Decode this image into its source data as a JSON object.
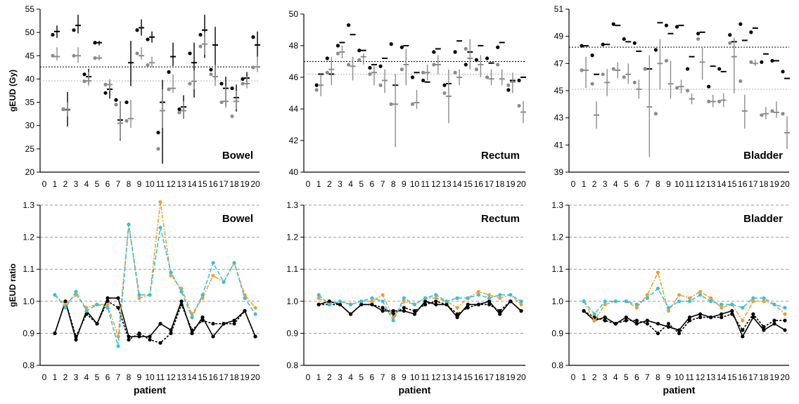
{
  "colors": {
    "black": "#000000",
    "gray": "#8c8c8c",
    "gray_light": "#b4b4b4",
    "orange": "#f0a030",
    "cyan": "#35c2dc",
    "gridline": "#999999"
  },
  "chart_data": [
    {
      "type": "scatter",
      "title": "Bowel",
      "xlabel": "",
      "ylabel": "gEUD (Gy)",
      "xlim": [
        0,
        20
      ],
      "ylim": [
        20,
        55
      ],
      "xticks": [
        0,
        1,
        2,
        3,
        4,
        5,
        6,
        7,
        8,
        9,
        10,
        11,
        12,
        13,
        14,
        15,
        16,
        17,
        18,
        19,
        20
      ],
      "yticks": [
        20,
        25,
        30,
        35,
        40,
        45,
        50,
        55
      ],
      "reference_lines": [
        42.6,
        39.6
      ],
      "x": [
        1,
        2,
        3,
        4,
        5,
        6,
        7,
        8,
        9,
        10,
        11,
        12,
        13,
        14,
        15,
        16,
        17,
        18,
        19,
        20
      ],
      "series": [
        {
          "marker": "black-dots",
          "values": [
            49.5,
            33.5,
            50.5,
            41,
            47.8,
            37,
            35.5,
            35,
            50.5,
            48.5,
            28.5,
            41.5,
            33.5,
            45.5,
            49.5,
            42,
            39,
            38,
            40,
            49
          ]
        },
        {
          "marker": "black-bars",
          "mean": [
            50.2,
            33.4,
            51.5,
            40.5,
            47.8,
            37.8,
            31.2,
            43.5,
            51,
            49,
            35,
            44.8,
            34,
            43.5,
            50.5,
            47.3,
            38,
            36,
            40.2,
            47.3
          ],
          "error_low": [
            48.8,
            29.8,
            49.8,
            39,
            47.2,
            35.8,
            26.8,
            38.5,
            49.3,
            47.8,
            21.8,
            42.8,
            31.5,
            36,
            44.5,
            39.8,
            34.2,
            33,
            38.8,
            44.8
          ],
          "error_high": [
            51.5,
            37.2,
            53.8,
            42.2,
            48.2,
            39.5,
            35.2,
            48.2,
            52.8,
            50.2,
            39.8,
            47.8,
            36.5,
            47.8,
            53.8,
            51.2,
            40.5,
            38.8,
            41.5,
            50.2
          ]
        },
        {
          "marker": "gray-dots",
          "values": [
            45,
            33.5,
            45,
            39.5,
            44.5,
            38.8,
            34.5,
            31,
            45.5,
            43,
            25,
            37.8,
            32.8,
            39,
            47,
            41,
            35,
            32,
            39,
            42.5
          ]
        },
        {
          "marker": "gray-bars",
          "mean": [
            44.8,
            33.5,
            45,
            39.6,
            44.5,
            38.8,
            30.5,
            31.5,
            45,
            43.5,
            33.2,
            38,
            33.2,
            39.5,
            47.5,
            40.5,
            35.2,
            35.2,
            39,
            42.6
          ],
          "error_low": [
            44,
            32,
            43.5,
            38.5,
            44,
            37.5,
            27,
            29.5,
            44.2,
            42.5,
            29.5,
            37,
            31.5,
            37.8,
            45.2,
            38.5,
            33.8,
            33.5,
            38,
            41.5
          ],
          "error_high": [
            46.8,
            35,
            46.8,
            41.5,
            45.2,
            40,
            35,
            35.5,
            46.8,
            44.8,
            37.8,
            41,
            35.2,
            41.8,
            50,
            43,
            38.5,
            37.5,
            40.5,
            44.8
          ]
        }
      ],
      "annotations": [
        "Bowel"
      ]
    },
    {
      "type": "scatter",
      "title": "Rectum",
      "xlabel": "",
      "ylabel": "",
      "xlim": [
        0,
        20
      ],
      "ylim": [
        40,
        50
      ],
      "xticks": [
        0,
        1,
        2,
        3,
        4,
        5,
        6,
        7,
        8,
        9,
        10,
        11,
        12,
        13,
        14,
        15,
        16,
        17,
        18,
        19,
        20
      ],
      "yticks": [
        40,
        42,
        44,
        46,
        48,
        50
      ],
      "reference_lines": [
        47,
        46.2
      ],
      "x": [
        1,
        2,
        3,
        4,
        5,
        6,
        7,
        8,
        9,
        10,
        11,
        12,
        13,
        14,
        15,
        16,
        17,
        18,
        19,
        20
      ],
      "series": [
        {
          "marker": "black-dots",
          "values": [
            45.5,
            47.2,
            48,
            49.3,
            47.7,
            46.6,
            46.7,
            48.1,
            47.9,
            46,
            45.8,
            47.6,
            45.5,
            47.6,
            46.8,
            47.1,
            47.2,
            47.9,
            45.2,
            45.8
          ]
        },
        {
          "marker": "black-bars",
          "mean": [
            46.2,
            46.2,
            48.2,
            48.7,
            47.7,
            46.8,
            47.2,
            45.5,
            48,
            46.3,
            45.7,
            47.8,
            45.6,
            48.3,
            47.6,
            48,
            46.9,
            48.2,
            45.8,
            46
          ]
        },
        {
          "marker": "gray-dots",
          "values": [
            45.2,
            46.3,
            47.5,
            46.8,
            47.1,
            46.2,
            45.5,
            44.3,
            46.5,
            44.3,
            46.3,
            46.8,
            45,
            46.3,
            47.8,
            46.5,
            46,
            46.8,
            45.5,
            44.2
          ]
        },
        {
          "marker": "gray-bars",
          "mean": [
            45.5,
            46.5,
            47.6,
            46.7,
            47.3,
            46.3,
            45.8,
            44.3,
            46.8,
            44.4,
            46.3,
            46.8,
            44.8,
            46,
            47.2,
            46.8,
            45.9,
            45.9,
            45.7,
            43.8
          ],
          "error_low": [
            44.8,
            45.5,
            47.2,
            45.8,
            46.8,
            45.5,
            45,
            41.6,
            45.5,
            44,
            45.8,
            46.2,
            43.1,
            45.5,
            46.5,
            46,
            45.5,
            45.5,
            45,
            43.1
          ],
          "error_high": [
            46.2,
            47.3,
            48,
            47.3,
            47.5,
            46.8,
            46.5,
            46.2,
            47.8,
            45.2,
            46.8,
            47.4,
            46.5,
            46.5,
            48.4,
            47.4,
            46.5,
            46.5,
            46.3,
            44.5
          ]
        }
      ],
      "annotations": [
        "Rectum"
      ]
    },
    {
      "type": "scatter",
      "title": "Bladder",
      "xlabel": "",
      "ylabel": "",
      "xlim": [
        0,
        20
      ],
      "ylim": [
        39,
        51
      ],
      "xticks": [
        0,
        1,
        2,
        3,
        4,
        5,
        6,
        7,
        8,
        9,
        10,
        11,
        12,
        13,
        14,
        15,
        16,
        17,
        18,
        19,
        20
      ],
      "yticks": [
        39,
        41,
        43,
        45,
        47,
        49,
        51
      ],
      "reference_lines": [
        48.2,
        45.1
      ],
      "x": [
        1,
        2,
        3,
        4,
        5,
        6,
        7,
        8,
        9,
        10,
        11,
        12,
        13,
        14,
        15,
        16,
        17,
        18,
        19,
        20
      ],
      "series": [
        {
          "marker": "black-dots",
          "values": [
            48.3,
            47.6,
            48.4,
            49.9,
            48.8,
            48.5,
            46.6,
            48,
            49.8,
            49.7,
            46.6,
            49.2,
            45.3,
            46.6,
            49.1,
            49.9,
            49.3,
            47.1,
            47.2,
            46.4
          ]
        },
        {
          "marker": "black-bars",
          "mean": [
            48.3,
            46.2,
            48.4,
            49.8,
            48.6,
            47.9,
            46.6,
            50,
            49.2,
            49.8,
            47.5,
            49.3,
            46.8,
            46.4,
            48.6,
            48.7,
            49.6,
            47.7,
            47.2,
            45.9
          ]
        },
        {
          "marker": "gray-dots",
          "values": [
            46.5,
            45.5,
            46.2,
            46.6,
            46,
            45.6,
            46.6,
            43.3,
            47.2,
            45.2,
            45,
            48.8,
            44.2,
            44.2,
            48.5,
            45.7,
            47.1,
            43.2,
            43.5,
            43.3
          ]
        },
        {
          "marker": "gray-bars",
          "mean": [
            46.5,
            43.2,
            45.6,
            46.5,
            46.2,
            45.1,
            43.8,
            47,
            45.5,
            45.3,
            44.4,
            47.1,
            44.2,
            44.3,
            47.5,
            43.5,
            47,
            43.3,
            43.4,
            41.9
          ],
          "error_low": [
            45.2,
            42.2,
            44.6,
            45.9,
            45.5,
            44.4,
            40.1,
            45.1,
            44.4,
            44.8,
            44,
            45.8,
            43.8,
            43.8,
            44.8,
            42.2,
            46.8,
            42.9,
            43,
            40.7
          ],
          "error_high": [
            47.5,
            44.2,
            46.6,
            47.1,
            47,
            45.8,
            47.6,
            48.8,
            47.2,
            45.8,
            44.8,
            48.2,
            44.7,
            44.8,
            48.9,
            44.7,
            47.3,
            43.8,
            44.2,
            43.1
          ]
        }
      ],
      "annotations": [
        "Bladder"
      ]
    },
    {
      "type": "line",
      "title": "Bowel",
      "xlabel": "patient",
      "ylabel": "gEUD ratio",
      "xlim": [
        0,
        20
      ],
      "ylim": [
        0.8,
        1.3
      ],
      "xticks": [
        0,
        1,
        2,
        3,
        4,
        5,
        6,
        7,
        8,
        9,
        10,
        11,
        12,
        13,
        14,
        15,
        16,
        17,
        18,
        19,
        20
      ],
      "yticks": [
        0.8,
        0.9,
        1.0,
        1.1,
        1.2,
        1.3
      ],
      "grid": true,
      "x": [
        1,
        2,
        3,
        4,
        5,
        6,
        7,
        8,
        9,
        10,
        11,
        12,
        13,
        14,
        15,
        16,
        17,
        18,
        19,
        20
      ],
      "series": [
        {
          "style": "black-solid",
          "values": [
            0.9,
            1.0,
            0.88,
            0.97,
            0.93,
            1.01,
            1.01,
            0.89,
            0.89,
            0.89,
            0.93,
            0.91,
            1.0,
            0.9,
            0.95,
            0.89,
            0.93,
            0.94,
            0.97,
            0.89
          ]
        },
        {
          "style": "black-dashed",
          "values": [
            0.9,
            1.0,
            0.89,
            0.96,
            0.93,
            1.0,
            0.98,
            0.88,
            0.9,
            0.88,
            0.87,
            0.9,
            0.99,
            0.91,
            0.94,
            0.93,
            0.93,
            0.93,
            0.97,
            0.89
          ]
        },
        {
          "style": "orange-dashdot",
          "values": [
            1.02,
            0.99,
            1.02,
            0.98,
            0.99,
            0.99,
            0.89,
            1.24,
            1.01,
            1.02,
            1.31,
            1.08,
            1.04,
            0.96,
            1.01,
            1.08,
            1.06,
            1.12,
            1.02,
            0.98
          ]
        },
        {
          "style": "cyan-dashed",
          "values": [
            1.02,
            0.98,
            1.03,
            0.97,
            0.99,
            0.98,
            0.86,
            1.24,
            1.02,
            1.02,
            1.23,
            1.09,
            1.03,
            0.95,
            1.02,
            1.12,
            1.06,
            1.12,
            1.01,
            0.96
          ]
        }
      ],
      "annotations": [
        "Bowel"
      ]
    },
    {
      "type": "line",
      "title": "Rectum",
      "xlabel": "patient",
      "ylabel": "",
      "xlim": [
        0,
        20
      ],
      "ylim": [
        0.8,
        1.3
      ],
      "xticks": [
        0,
        1,
        2,
        3,
        4,
        5,
        6,
        7,
        8,
        9,
        10,
        11,
        12,
        13,
        14,
        15,
        16,
        17,
        18,
        19,
        20
      ],
      "yticks": [
        0.8,
        0.9,
        1.0,
        1.1,
        1.2,
        1.3
      ],
      "grid": true,
      "x": [
        1,
        2,
        3,
        4,
        5,
        6,
        7,
        8,
        9,
        10,
        11,
        12,
        13,
        14,
        15,
        16,
        17,
        18,
        19,
        20
      ],
      "series": [
        {
          "style": "black-solid",
          "values": [
            0.99,
            1.0,
            0.99,
            0.96,
            0.99,
            0.99,
            0.97,
            0.97,
            0.97,
            0.96,
            1.0,
            0.99,
            0.99,
            0.95,
            0.99,
            0.99,
            1.0,
            0.96,
            1.0,
            0.97
          ]
        },
        {
          "style": "black-dashed",
          "values": [
            0.99,
            0.99,
            0.99,
            0.96,
            0.99,
            0.99,
            0.98,
            0.96,
            0.98,
            0.97,
            0.99,
            1.0,
            0.99,
            0.96,
            0.98,
            0.99,
            0.99,
            0.97,
            1.0,
            0.97
          ]
        },
        {
          "style": "orange-dashdot",
          "values": [
            1.01,
            0.99,
            1.0,
            0.99,
            1.0,
            1.0,
            1.02,
            0.95,
            1.0,
            0.99,
            1.01,
            1.01,
            1.0,
            0.98,
            1.01,
            1.03,
            1.02,
            1.01,
            1.02,
            0.99
          ]
        },
        {
          "style": "cyan-dashed",
          "values": [
            1.02,
            0.99,
            1.0,
            0.99,
            1.0,
            1.01,
            1.0,
            0.94,
            1.01,
            0.99,
            1.01,
            1.02,
            1.0,
            1.01,
            1.01,
            1.02,
            1.01,
            1.02,
            1.02,
            1.0
          ]
        }
      ],
      "annotations": [
        "Rectum"
      ]
    },
    {
      "type": "line",
      "title": "Bladder",
      "xlabel": "patient",
      "ylabel": "",
      "xlim": [
        0,
        20
      ],
      "ylim": [
        0.8,
        1.3
      ],
      "xticks": [
        0,
        1,
        2,
        3,
        4,
        5,
        6,
        7,
        8,
        9,
        10,
        11,
        12,
        13,
        14,
        15,
        16,
        17,
        18,
        19,
        20
      ],
      "yticks": [
        0.8,
        0.9,
        1.0,
        1.1,
        1.2,
        1.3
      ],
      "grid": true,
      "x": [
        1,
        2,
        3,
        4,
        5,
        6,
        7,
        8,
        9,
        10,
        11,
        12,
        13,
        14,
        15,
        16,
        17,
        18,
        19,
        20
      ],
      "series": [
        {
          "style": "black-solid",
          "values": [
            0.97,
            0.94,
            0.95,
            0.93,
            0.95,
            0.93,
            0.94,
            0.93,
            0.92,
            0.91,
            0.95,
            0.96,
            0.95,
            0.96,
            0.97,
            0.89,
            0.95,
            0.91,
            0.93,
            0.91
          ]
        },
        {
          "style": "black-dashed",
          "values": [
            0.97,
            0.95,
            0.94,
            0.93,
            0.94,
            0.94,
            0.93,
            0.9,
            0.93,
            0.9,
            0.94,
            0.95,
            0.95,
            0.95,
            0.96,
            0.91,
            0.96,
            0.92,
            0.94,
            0.94
          ]
        },
        {
          "style": "orange-dashdot",
          "values": [
            1.0,
            0.94,
            0.99,
            1.0,
            1.0,
            0.98,
            1.02,
            1.09,
            0.97,
            1.02,
            1.01,
            1.03,
            1.01,
            0.98,
            0.99,
            0.94,
            1.0,
            1.0,
            0.99,
            0.96
          ]
        },
        {
          "style": "cyan-dashed",
          "values": [
            1.0,
            0.96,
            1.0,
            1.0,
            1.0,
            0.99,
            1.01,
            1.04,
            0.98,
            1.0,
            1.0,
            1.02,
            1.0,
            0.99,
            0.99,
            0.98,
            1.01,
            1.01,
            0.99,
            0.98
          ]
        }
      ],
      "annotations": [
        "Bladder"
      ]
    }
  ]
}
